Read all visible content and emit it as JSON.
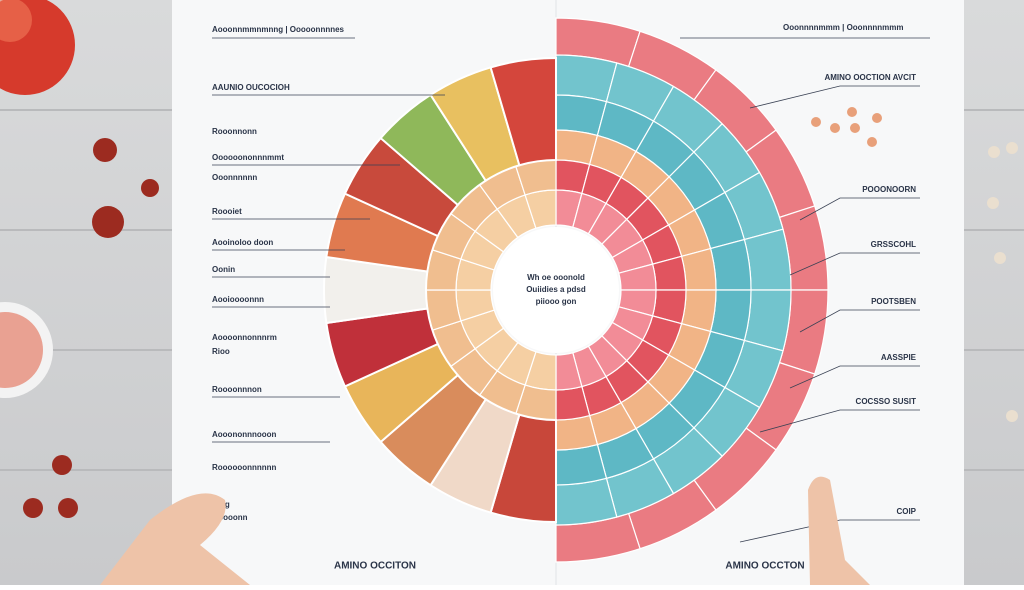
{
  "header": {
    "left": "Aooonnmmnmnng | Ooooonnnnes",
    "right": "Ooonnnnmmm | Ooonnnnmmm"
  },
  "center_text": [
    "Wh oe ooonold",
    "Ouiidies a pdsd",
    "piiooo gon"
  ],
  "left_labels": [
    "AAUNIO OUCOCIOH",
    "Rooonnonn",
    "Oooooononnnmmt",
    "Ooonnnnnn",
    "Roooiet",
    "Aooinoloo doon",
    "Oonin",
    "Aooioooonnn",
    "Aoooonnonnnrm",
    "Rioo",
    "Roooonnnon",
    "Aooononnnooon",
    "Roooooonnnnnn",
    "Oiiig",
    "Ooooonn"
  ],
  "right_labels": [
    "AMINO OOCTION AVCIT",
    "POOONOORN",
    "GRSSCOHL",
    "POOTSBEN",
    "AASSPIE",
    "COCSSO SUSIT",
    "COIP"
  ],
  "footer_left": "AMINO OCCITON",
  "footer_right": "AMINO OCCTON"
}
